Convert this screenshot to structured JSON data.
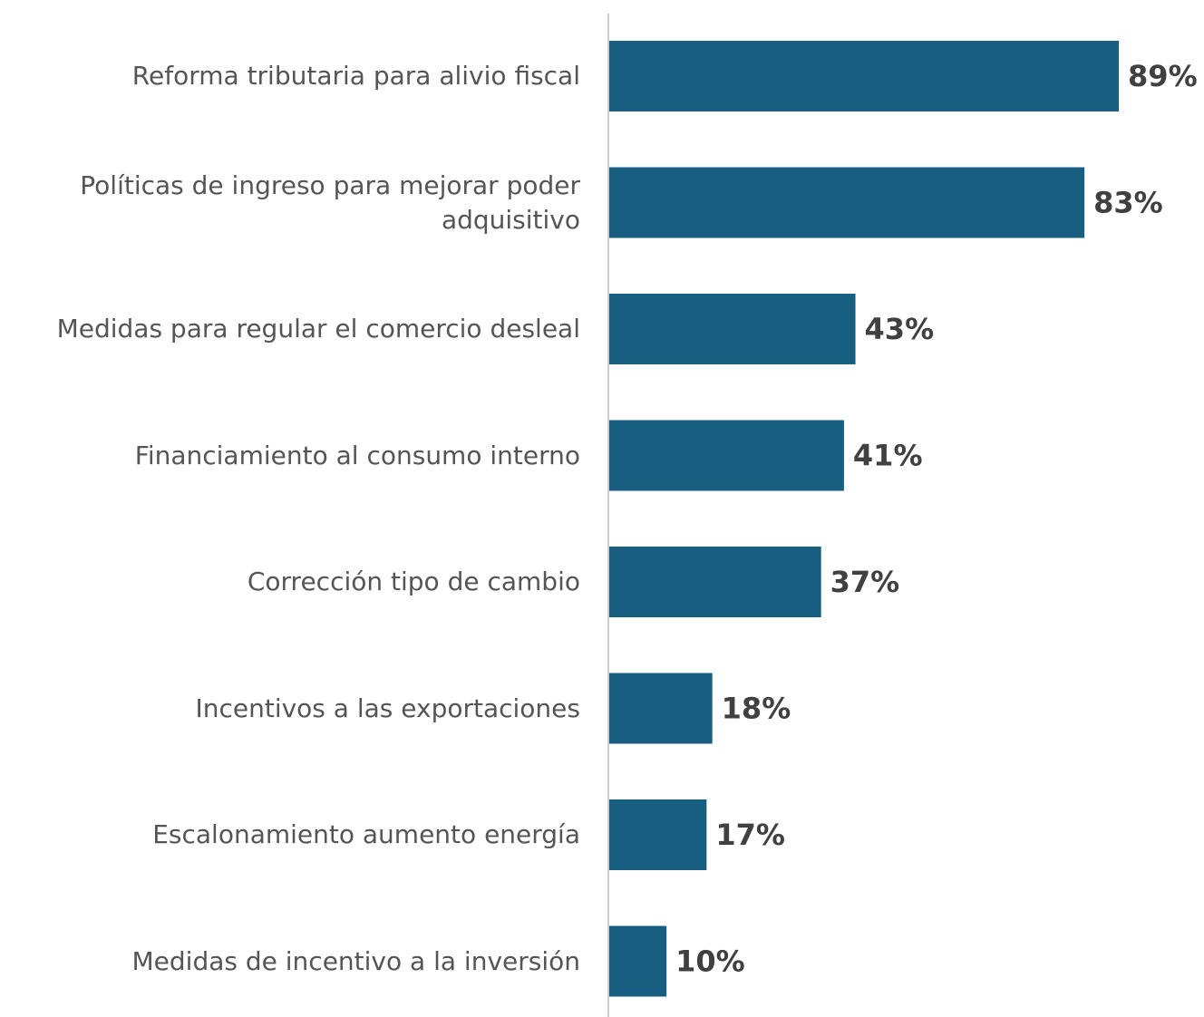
{
  "chart_data": {
    "type": "bar",
    "orientation": "horizontal",
    "categories": [
      "Reforma tributaria para alivio fiscal",
      "Políticas de ingreso para mejorar poder adquisitivo",
      "Medidas para regular el comercio desleal",
      "Financiamiento al consumo interno",
      "Corrección tipo de cambio",
      "Incentivos a las exportaciones",
      "Escalonamiento aumento energía",
      "Medidas de incentivo a la inversión"
    ],
    "values": [
      89,
      83,
      43,
      41,
      37,
      18,
      17,
      10
    ],
    "value_labels": [
      "89%",
      "83%",
      "43%",
      "41%",
      "37%",
      "18%",
      "17%",
      "10%"
    ],
    "color": "#175e80"
  }
}
